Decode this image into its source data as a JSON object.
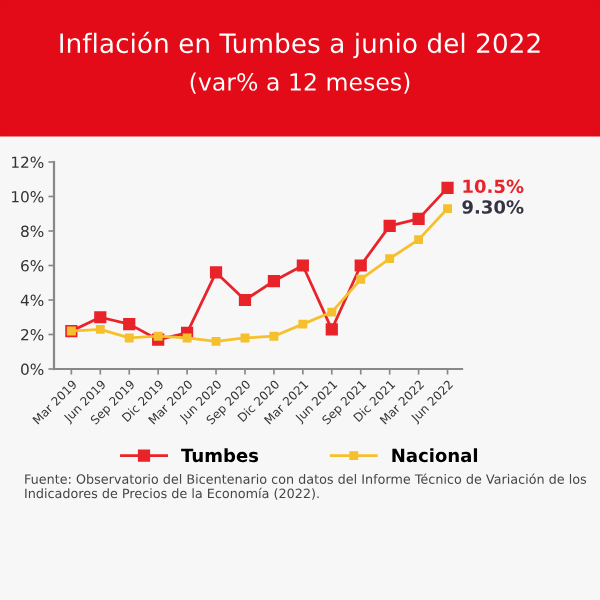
{
  "chart_data": {
    "type": "line",
    "title": "Inflación en Tumbes a junio del 2022",
    "subtitle": "(var% a 12 meses)",
    "categories": [
      "Mar 2019",
      "Jun 2019",
      "Sep 2019",
      "Dic 2019",
      "Mar 2020",
      "Jun 2020",
      "Sep 2020",
      "Dic 2020",
      "Mar 2021",
      "Jun 2021",
      "Sep 2021",
      "Dic 2021",
      "Mar 2022",
      "Jun 2022"
    ],
    "series": [
      {
        "name": "Tumbes",
        "color": "#e8232a",
        "values": [
          2.2,
          3.0,
          2.6,
          1.7,
          2.1,
          5.6,
          4.0,
          5.1,
          6.0,
          2.3,
          6.0,
          8.3,
          8.7,
          10.5
        ],
        "value_labels": [
          null,
          null,
          null,
          null,
          null,
          null,
          null,
          null,
          null,
          null,
          null,
          null,
          null,
          "10.5%"
        ]
      },
      {
        "name": "Nacional",
        "color": "#f5c02c",
        "values": [
          2.2,
          2.3,
          1.8,
          1.9,
          1.8,
          1.6,
          1.8,
          1.9,
          2.6,
          3.3,
          5.2,
          6.4,
          7.5,
          9.3
        ],
        "value_labels": [
          null,
          null,
          null,
          null,
          null,
          null,
          null,
          null,
          null,
          null,
          null,
          null,
          null,
          "9.30%"
        ]
      }
    ],
    "ylim": [
      0,
      12
    ],
    "yticks": [
      {
        "value": 0,
        "label": "0%"
      },
      {
        "value": 2,
        "label": "2%"
      },
      {
        "value": 4,
        "label": "4%"
      },
      {
        "value": 6,
        "label": "6%"
      },
      {
        "value": 8,
        "label": "8%"
      },
      {
        "value": 10,
        "label": "10%"
      },
      {
        "value": 12,
        "label": "12%"
      }
    ],
    "grid": false,
    "legend": "bottom",
    "marker": "square",
    "line_style": "solid",
    "annotations": [
      "Fuente: Observatorio del Bicentenario con datos del Informe Técnico de Variación de los Indicadores de Precios de la Economía (2022)."
    ]
  }
}
